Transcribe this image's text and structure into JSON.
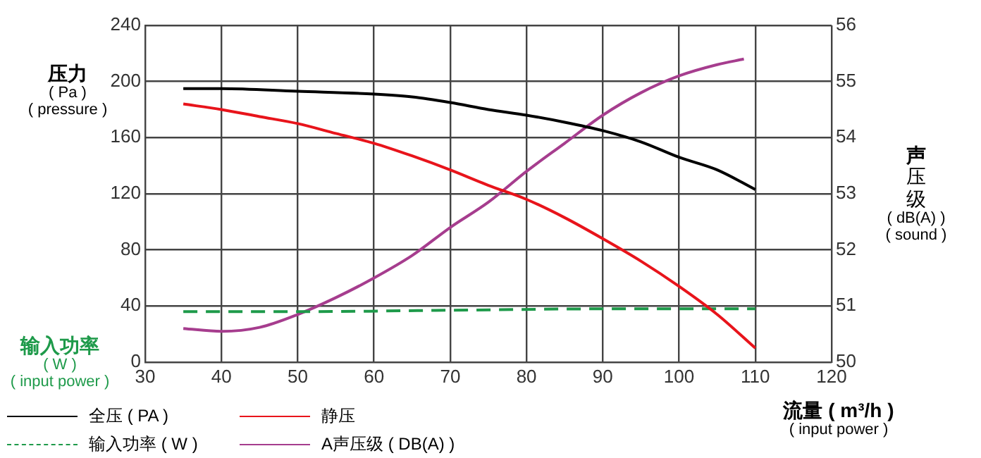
{
  "chart_data": {
    "type": "line",
    "xlabel": "流量 ( m³/h )\n( input power )",
    "ylabel": "压力\n( Pa )\n( pressure )",
    "y2label": "声压级\n( dB(A) )\n( sound )",
    "annotations": [
      "输入功率\n( W )\n( input power )"
    ],
    "xlim": [
      30,
      120
    ],
    "xticks": [
      30,
      40,
      50,
      60,
      70,
      80,
      90,
      100,
      110,
      120
    ],
    "ylim": [
      0,
      240
    ],
    "yticks": [
      0,
      40,
      80,
      120,
      160,
      200,
      240
    ],
    "y2lim": [
      50,
      56
    ],
    "y2ticks": [
      50,
      51,
      52,
      53,
      54,
      55,
      56
    ],
    "grid": true,
    "legend": "bottom",
    "marker": "none",
    "series": [
      {
        "name": "全压 ( PA )",
        "color": "#000000",
        "line_style": "solid",
        "x": [
          35,
          40,
          50,
          60,
          65,
          70,
          75,
          80,
          85,
          90,
          95,
          100,
          105,
          110
        ],
        "values": [
          195,
          195,
          193,
          191,
          189,
          185,
          180,
          176,
          171,
          165,
          157,
          146,
          137,
          123
        ]
      },
      {
        "name": "静压",
        "color": "#e8141b",
        "line_style": "solid",
        "x": [
          35,
          40,
          45,
          50,
          55,
          60,
          65,
          70,
          75,
          80,
          85,
          90,
          95,
          100,
          105,
          110
        ],
        "values": [
          184,
          180,
          175,
          170,
          163,
          156,
          147,
          137,
          126,
          116,
          103,
          88,
          72,
          54,
          34,
          10
        ]
      },
      {
        "name": "输入功率 ( W )",
        "color": "#1e9a4a",
        "line_style": "dashed",
        "x": [
          35,
          50,
          70,
          90,
          110
        ],
        "values": [
          36,
          36,
          37,
          38,
          38
        ]
      },
      {
        "name": "A声压级 ( DB(A) )",
        "color": "#a63d8e",
        "line_style": "solid",
        "axis": "y2",
        "x": [
          35,
          40,
          45,
          50,
          55,
          60,
          65,
          70,
          75,
          80,
          85,
          90,
          95,
          100,
          105,
          108.5
        ],
        "values": [
          50.6,
          50.55,
          50.62,
          50.85,
          51.15,
          51.5,
          51.9,
          52.4,
          52.85,
          53.4,
          53.9,
          54.4,
          54.8,
          55.1,
          55.3,
          55.4
        ]
      }
    ]
  }
}
